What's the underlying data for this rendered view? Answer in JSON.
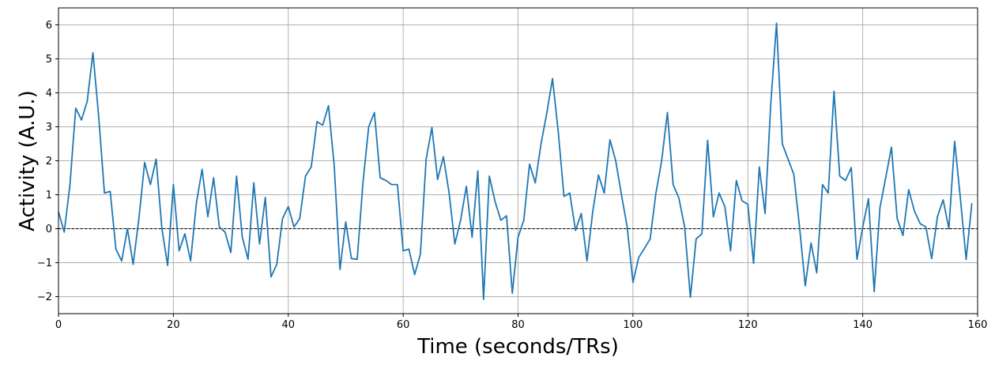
{
  "chart_data": {
    "type": "line",
    "title": "",
    "xlabel": "Time (seconds/TRs)",
    "ylabel": "Activity (A.U.)",
    "xlim": [
      0,
      160
    ],
    "ylim": [
      -2.5,
      6.5
    ],
    "xticks": [
      0,
      20,
      40,
      60,
      80,
      100,
      120,
      140,
      160
    ],
    "yticks": [
      -2,
      -1,
      0,
      1,
      2,
      3,
      4,
      5,
      6
    ],
    "grid": true,
    "line_color": "#1f77b4",
    "zero_line": {
      "y": 0,
      "style": "dashed",
      "color": "#000000"
    },
    "series": [
      {
        "x": [
          0,
          1,
          2,
          3,
          4,
          5,
          6,
          7,
          8,
          9,
          10,
          11,
          12,
          13,
          14,
          15,
          16,
          17,
          18,
          19,
          20,
          21,
          22,
          23,
          24,
          25,
          26,
          27,
          28,
          29,
          30,
          31,
          32,
          33,
          34,
          35,
          36,
          37,
          38,
          39,
          40,
          41,
          42,
          43,
          44,
          45,
          46,
          47,
          48,
          49,
          50,
          51,
          52,
          53,
          54,
          55,
          56,
          57,
          58,
          59,
          60,
          61,
          62,
          63,
          64,
          65,
          66,
          67,
          68,
          69,
          70,
          71,
          72,
          73,
          74,
          75,
          76,
          77,
          78,
          79,
          80,
          81,
          82,
          83,
          84,
          85,
          86,
          87,
          88,
          89,
          90,
          91,
          92,
          93,
          94,
          95,
          96,
          97,
          98,
          99,
          100,
          101,
          102,
          103,
          104,
          105,
          106,
          107,
          108,
          109,
          110,
          111,
          112,
          113,
          114,
          115,
          116,
          117,
          118,
          119,
          120,
          121,
          122,
          123,
          124,
          125,
          126,
          127,
          128,
          129,
          130,
          131,
          132,
          133,
          134,
          135,
          136,
          137,
          138,
          139,
          140,
          141,
          142,
          143,
          144,
          145,
          146,
          147,
          148,
          149,
          150,
          151,
          152,
          153,
          154,
          155,
          156,
          157,
          158,
          159
        ],
        "values": [
          0.5,
          -0.1,
          1.3,
          3.55,
          3.2,
          3.75,
          5.18,
          3.3,
          1.05,
          1.1,
          -0.6,
          -0.95,
          0.0,
          -1.05,
          0.3,
          1.95,
          1.3,
          2.05,
          0.0,
          -1.08,
          1.3,
          -0.65,
          -0.15,
          -0.95,
          0.75,
          1.75,
          0.35,
          1.5,
          0.05,
          -0.1,
          -0.7,
          1.55,
          -0.25,
          -0.9,
          1.35,
          -0.45,
          0.92,
          -1.42,
          -1.05,
          0.3,
          0.65,
          0.05,
          0.3,
          1.55,
          1.82,
          3.15,
          3.05,
          3.62,
          1.85,
          -1.2,
          0.2,
          -0.88,
          -0.9,
          1.35,
          3.0,
          3.42,
          1.5,
          1.42,
          1.3,
          1.3,
          -0.65,
          -0.6,
          -1.35,
          -0.75,
          2.05,
          2.98,
          1.45,
          2.12,
          1.05,
          -0.45,
          0.25,
          1.25,
          -0.25,
          1.7,
          -2.08,
          1.55,
          0.8,
          0.25,
          0.38,
          -1.9,
          -0.25,
          0.25,
          1.9,
          1.35,
          2.5,
          3.4,
          4.42,
          2.85,
          0.95,
          1.05,
          -0.05,
          0.45,
          -0.95,
          0.5,
          1.58,
          1.05,
          2.62,
          2.0,
          1.0,
          0.05,
          -1.58,
          -0.85,
          -0.58,
          -0.3,
          1.05,
          2.0,
          3.42,
          1.3,
          0.9,
          0.05,
          -2.02,
          -0.3,
          -0.15,
          2.6,
          0.35,
          1.05,
          0.65,
          -0.65,
          1.42,
          0.82,
          0.72,
          -1.02,
          1.82,
          0.45,
          3.7,
          6.05,
          2.5,
          2.05,
          1.6,
          0.05,
          -1.68,
          -0.42,
          -1.3,
          1.3,
          1.05,
          4.05,
          1.55,
          1.42,
          1.8,
          -0.9,
          0.05,
          0.88,
          -1.85,
          0.62,
          1.5,
          2.4,
          0.3,
          -0.2,
          1.15,
          0.52,
          0.15,
          0.05,
          -0.88,
          0.35,
          0.85,
          0.0,
          2.57,
          0.9,
          -0.9,
          0.75
        ]
      }
    ]
  }
}
